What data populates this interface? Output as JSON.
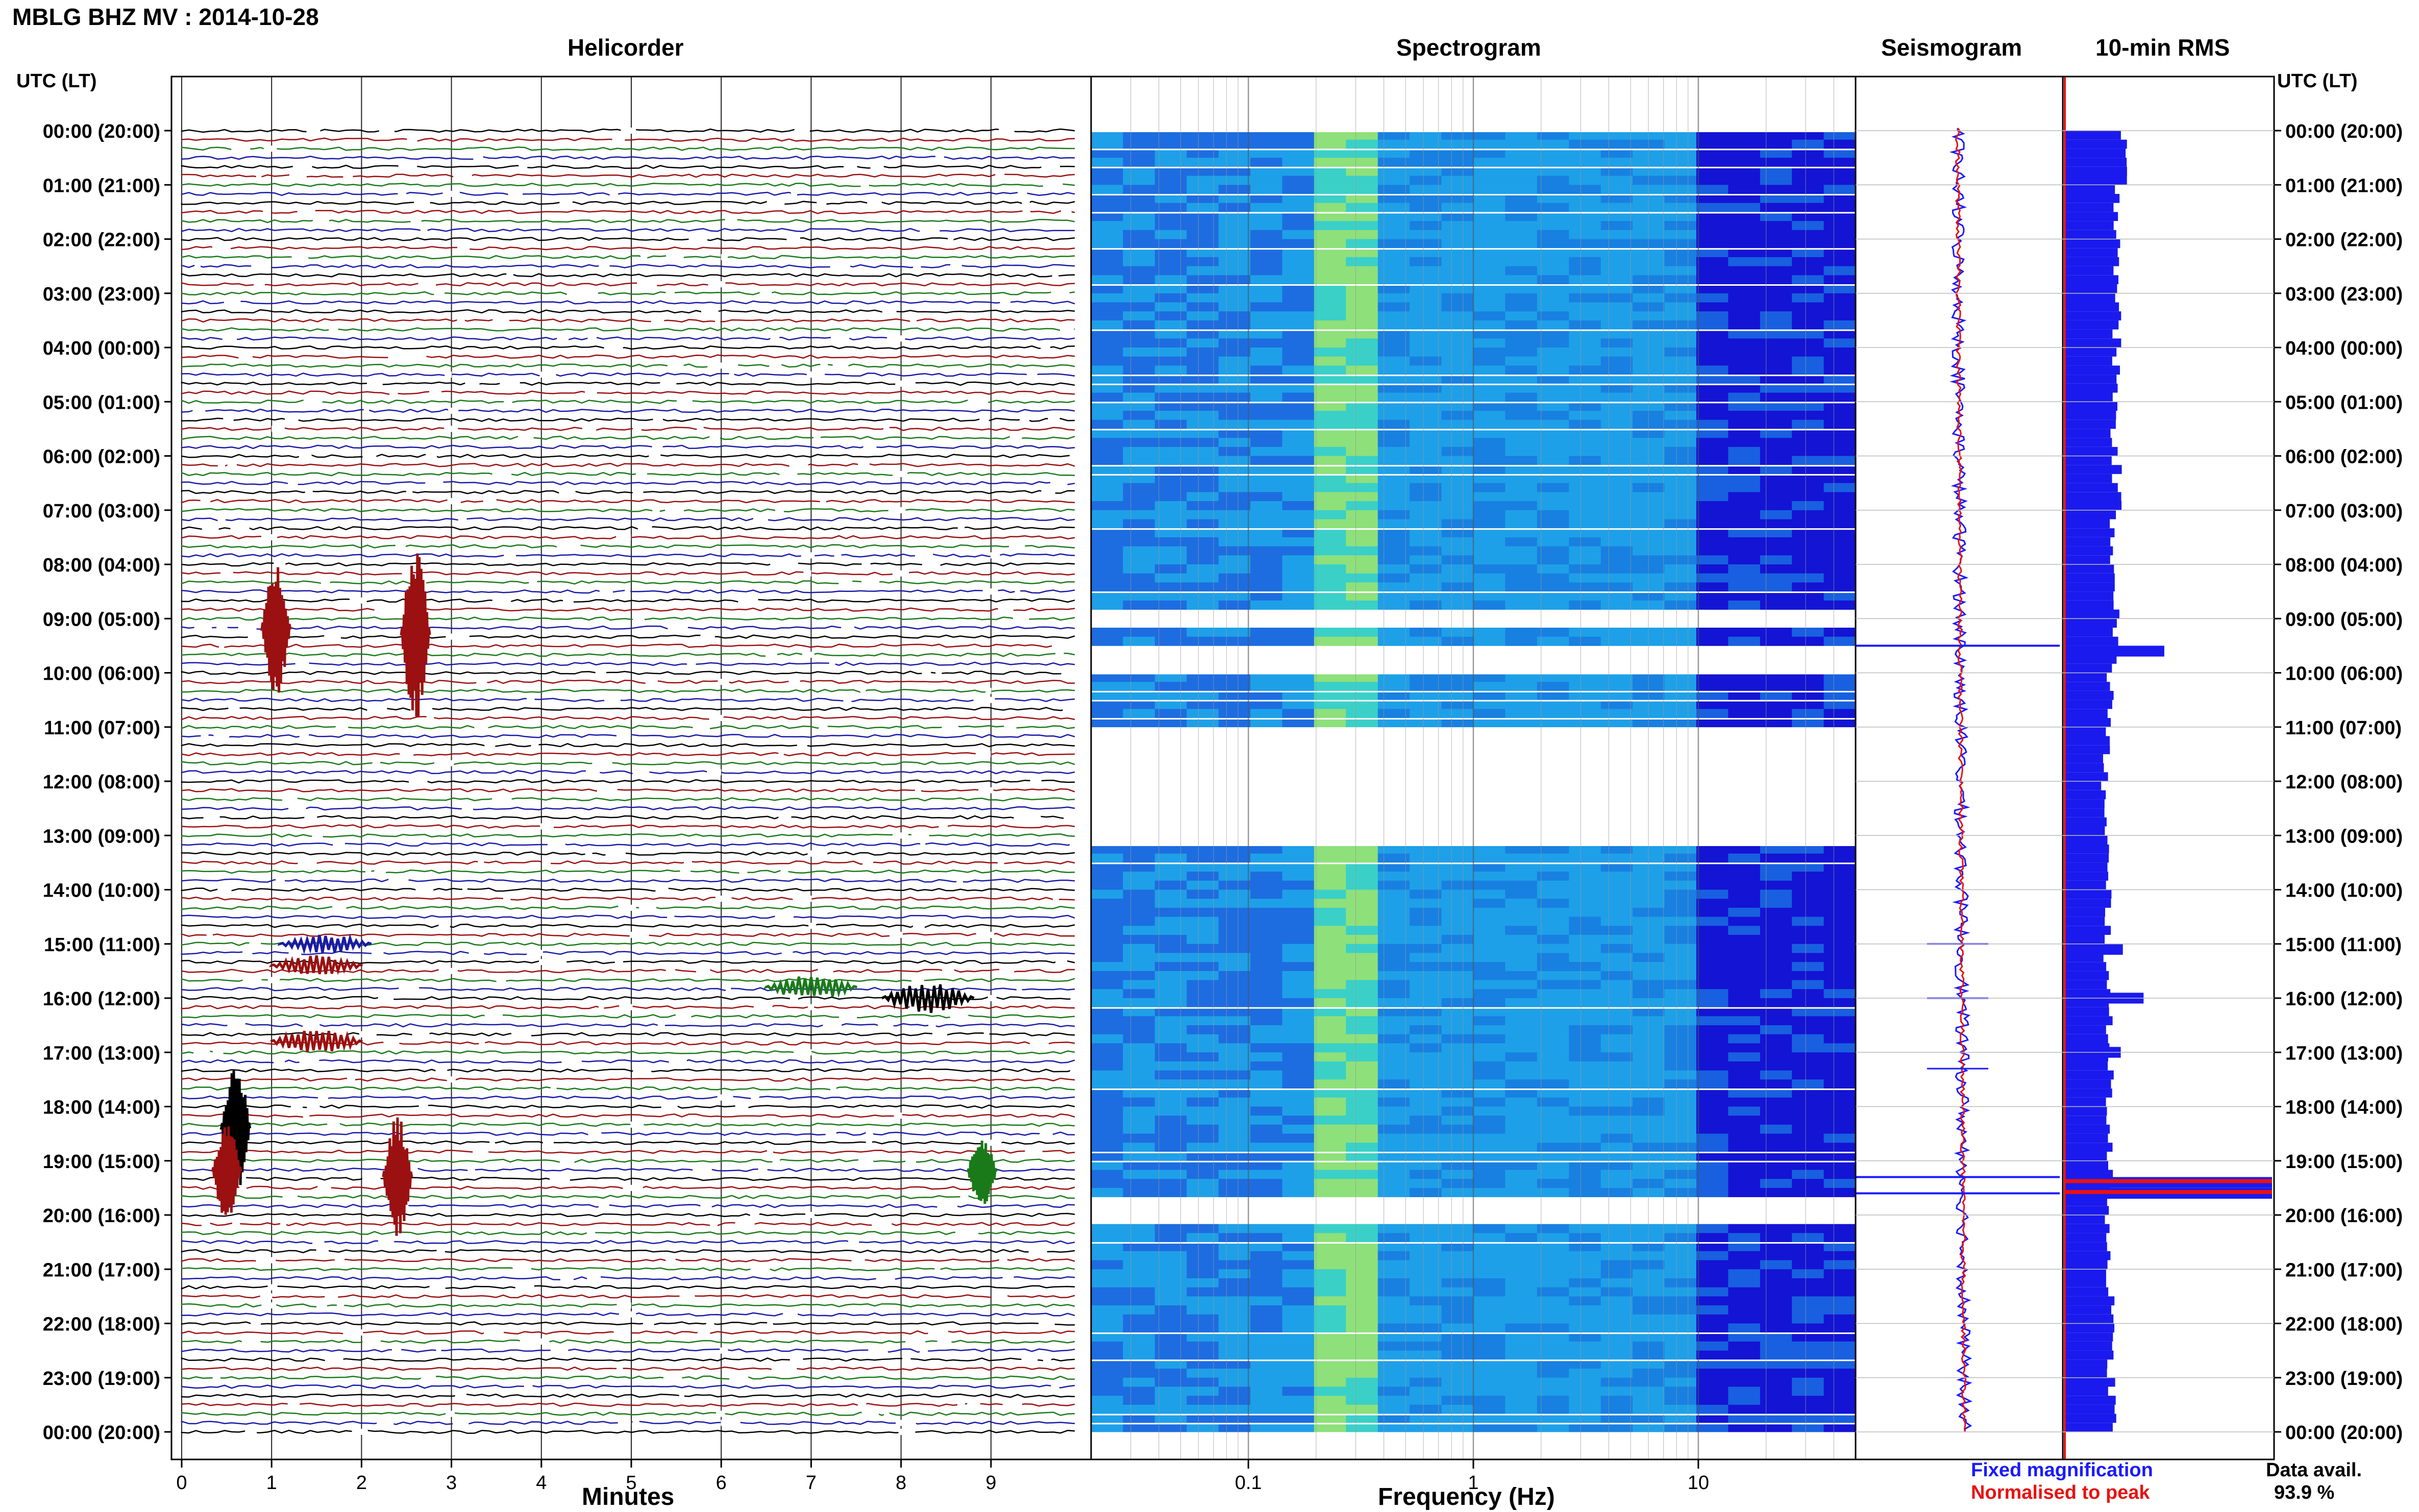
{
  "title": "MBLG BHZ MV : 2014-10-28",
  "utc_header": "UTC (LT)",
  "panels": {
    "helicorder": "Helicorder",
    "spectrogram": "Spectrogram",
    "seismogram": "Seismogram",
    "rms": "10-min RMS"
  },
  "xlabels": {
    "helicorder": "Minutes",
    "spectrogram": "Frequency (Hz)"
  },
  "legend": {
    "fixed": "Fixed magnification",
    "normalised": "Normalised to peak",
    "fixed_color": "#1a1aff",
    "normalised_color": "#e81212"
  },
  "data_avail": {
    "label": "Data avail.",
    "value": "93.9 %"
  },
  "colors": {
    "trace_cycle": [
      "#000000",
      "#9b1010",
      "#1a7a1a",
      "#1a1aa8"
    ],
    "rms_fill": "#1a1aee",
    "spec_low": "#1414d4",
    "spec_mid": "#1ea0e8",
    "spec_high": "#8ee07a"
  },
  "chart_data": [
    {
      "type": "line",
      "name": "helicorder",
      "title": "Helicorder",
      "xlabel": "Minutes",
      "xlim": [
        0,
        10
      ],
      "xticks": [
        "0",
        "1",
        "2",
        "3",
        "4",
        "5",
        "6",
        "7",
        "8",
        "9"
      ],
      "ytick_labels": [
        "00:00 (20:00)",
        "01:00 (21:00)",
        "02:00 (22:00)",
        "03:00 (23:00)",
        "04:00 (00:00)",
        "05:00 (01:00)",
        "06:00 (02:00)",
        "07:00 (03:00)",
        "08:00 (04:00)",
        "09:00 (05:00)",
        "10:00 (06:00)",
        "11:00 (07:00)",
        "12:00 (08:00)",
        "13:00 (09:00)",
        "14:00 (10:00)",
        "15:00 (11:00)",
        "16:00 (12:00)",
        "17:00 (13:00)",
        "18:00 (14:00)",
        "19:00 (15:00)",
        "20:00 (16:00)",
        "21:00 (17:00)",
        "22:00 (18:00)",
        "23:00 (19:00)",
        "00:00 (20:00)"
      ],
      "hours": 24,
      "lines_per_hour": 6,
      "events": [
        {
          "utc_hour": 9.2,
          "minute": 1.05,
          "amp": 2.2,
          "color": "#9b1010"
        },
        {
          "utc_hour": 9.3,
          "minute": 2.6,
          "amp": 3.0,
          "color": "#9b1010"
        },
        {
          "utc_hour": 15.0,
          "minute": 1.6,
          "amp": 0.3,
          "color": "#1a1aa8"
        },
        {
          "utc_hour": 15.4,
          "minute": 1.5,
          "amp": 0.35,
          "color": "#9b1010"
        },
        {
          "utc_hour": 15.8,
          "minute": 7.0,
          "amp": 0.4,
          "color": "#1a7a1a"
        },
        {
          "utc_hour": 16.0,
          "minute": 8.3,
          "amp": 0.5,
          "color": "#000000"
        },
        {
          "utc_hour": 16.8,
          "minute": 1.5,
          "amp": 0.4,
          "color": "#9b1010"
        },
        {
          "utc_hour": 18.4,
          "minute": 0.6,
          "amp": 2.2,
          "color": "#000000"
        },
        {
          "utc_hour": 19.2,
          "minute": 0.5,
          "amp": 1.6,
          "color": "#9b1010"
        },
        {
          "utc_hour": 19.2,
          "minute": 8.9,
          "amp": 1.2,
          "color": "#1a7a1a"
        },
        {
          "utc_hour": 19.3,
          "minute": 2.4,
          "amp": 2.0,
          "color": "#9b1010"
        }
      ]
    },
    {
      "type": "heatmap",
      "name": "spectrogram",
      "title": "Spectrogram",
      "xlabel": "Frequency (Hz)",
      "xscale": "log",
      "xlim": [
        0.02,
        50
      ],
      "xticks": [
        0.1,
        1,
        10
      ],
      "xtick_labels": [
        "0.1",
        "1",
        "10"
      ],
      "gap_hours": [
        [
          8.8,
          9.0
        ],
        [
          9.5,
          9.9
        ],
        [
          11.0,
          11.7
        ],
        [
          11.8,
          13.1
        ],
        [
          19.6,
          20.0
        ]
      ],
      "peak_band_hz": [
        0.2,
        0.35
      ]
    },
    {
      "type": "line",
      "name": "seismogram",
      "title": "Seismogram",
      "events_utc_hour": [
        9.5,
        15.0,
        16.0,
        17.3,
        19.3,
        19.6
      ]
    },
    {
      "type": "bar",
      "name": "10-min RMS",
      "title": "10-min RMS",
      "orientation": "horizontal",
      "ytick_labels": [
        "00:00 (20:00)",
        "01:00 (21:00)",
        "02:00 (22:00)",
        "03:00 (23:00)",
        "04:00 (00:00)",
        "05:00 (01:00)",
        "06:00 (02:00)",
        "07:00 (03:00)",
        "08:00 (04:00)",
        "09:00 (05:00)",
        "10:00 (06:00)",
        "11:00 (07:00)",
        "12:00 (08:00)",
        "13:00 (09:00)",
        "14:00 (10:00)",
        "15:00 (11:00)",
        "16:00 (12:00)",
        "17:00 (13:00)",
        "18:00 (14:00)",
        "19:00 (15:00)",
        "20:00 (16:00)",
        "21:00 (17:00)",
        "22:00 (18:00)",
        "23:00 (19:00)",
        "00:00 (20:00)"
      ],
      "values_per_hour": [
        0.28,
        0.26,
        0.26,
        0.25,
        0.25,
        0.24,
        0.25,
        0.24,
        0.25,
        0.24,
        0.22,
        0.2,
        0.19,
        0.2,
        0.21,
        0.2,
        0.22,
        0.22,
        0.21,
        0.22,
        0.21,
        0.22,
        0.22,
        0.23,
        0.24
      ],
      "spikes": [
        {
          "utc_hour": 9.5,
          "value": 0.48
        },
        {
          "utc_hour": 15.0,
          "value": 0.28
        },
        {
          "utc_hour": 15.9,
          "value": 0.38
        },
        {
          "utc_hour": 16.9,
          "value": 0.27
        },
        {
          "utc_hour": 19.3,
          "value": 1.0
        },
        {
          "utc_hour": 19.5,
          "value": 1.0
        }
      ]
    }
  ]
}
